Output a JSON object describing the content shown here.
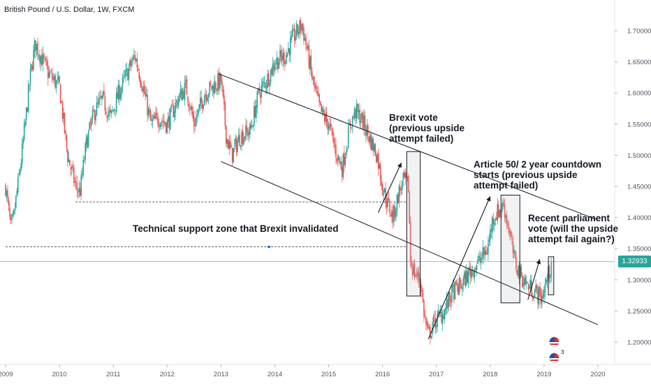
{
  "header": {
    "title": "British Pound / U.S. Dollar, 1W, FXCM"
  },
  "colors": {
    "up": "#26a69a",
    "down": "#ef5350",
    "accent": "#26a69a",
    "trend": "#131722",
    "support": "#5d606b",
    "box_fill": "#b2b5be"
  },
  "price_tag": {
    "value": "1.32933"
  },
  "events": {
    "count_label": "3",
    "icon": "us-flag-economic-event-icon"
  },
  "chart_data": {
    "type": "candlestick",
    "timeframe": "1W",
    "symbol": "British Pound / U.S. Dollar",
    "source": "FXCM",
    "x_ticks": [
      "2009",
      "2010",
      "2011",
      "2012",
      "2013",
      "2014",
      "2015",
      "2016",
      "2017",
      "2018",
      "2019",
      "2020"
    ],
    "y_ticks": [
      "1.20000",
      "1.25000",
      "1.30000",
      "1.35000",
      "1.40000",
      "1.45000",
      "1.50000",
      "1.55000",
      "1.60000",
      "1.65000",
      "1.70000"
    ],
    "ylim": [
      1.16,
      1.74
    ],
    "xlim": [
      2009.0,
      2020.3
    ],
    "last_price": 1.32933,
    "close_path": [
      [
        2009.0,
        1.45
      ],
      [
        2009.1,
        1.38
      ],
      [
        2009.15,
        1.4
      ],
      [
        2009.3,
        1.5
      ],
      [
        2009.45,
        1.62
      ],
      [
        2009.55,
        1.68
      ],
      [
        2009.65,
        1.66
      ],
      [
        2009.8,
        1.63
      ],
      [
        2010.0,
        1.61
      ],
      [
        2010.15,
        1.5
      ],
      [
        2010.3,
        1.45
      ],
      [
        2010.38,
        1.44
      ],
      [
        2010.5,
        1.52
      ],
      [
        2010.65,
        1.57
      ],
      [
        2010.8,
        1.59
      ],
      [
        2010.95,
        1.56
      ],
      [
        2011.1,
        1.6
      ],
      [
        2011.3,
        1.64
      ],
      [
        2011.4,
        1.66
      ],
      [
        2011.55,
        1.61
      ],
      [
        2011.7,
        1.55
      ],
      [
        2011.85,
        1.56
      ],
      [
        2012.0,
        1.55
      ],
      [
        2012.2,
        1.59
      ],
      [
        2012.35,
        1.61
      ],
      [
        2012.5,
        1.55
      ],
      [
        2012.7,
        1.6
      ],
      [
        2012.85,
        1.61
      ],
      [
        2013.0,
        1.62
      ],
      [
        2013.1,
        1.53
      ],
      [
        2013.2,
        1.5
      ],
      [
        2013.35,
        1.53
      ],
      [
        2013.55,
        1.54
      ],
      [
        2013.7,
        1.6
      ],
      [
        2013.85,
        1.62
      ],
      [
        2014.0,
        1.65
      ],
      [
        2014.2,
        1.66
      ],
      [
        2014.35,
        1.69
      ],
      [
        2014.5,
        1.71
      ],
      [
        2014.6,
        1.67
      ],
      [
        2014.7,
        1.62
      ],
      [
        2014.85,
        1.57
      ],
      [
        2015.0,
        1.55
      ],
      [
        2015.15,
        1.5
      ],
      [
        2015.25,
        1.48
      ],
      [
        2015.4,
        1.55
      ],
      [
        2015.5,
        1.57
      ],
      [
        2015.6,
        1.56
      ],
      [
        2015.75,
        1.53
      ],
      [
        2015.9,
        1.5
      ],
      [
        2016.0,
        1.45
      ],
      [
        2016.1,
        1.42
      ],
      [
        2016.2,
        1.4
      ],
      [
        2016.3,
        1.44
      ],
      [
        2016.4,
        1.46
      ],
      [
        2016.48,
        1.45
      ],
      [
        2016.52,
        1.33
      ],
      [
        2016.6,
        1.31
      ],
      [
        2016.7,
        1.3
      ],
      [
        2016.78,
        1.24
      ],
      [
        2016.85,
        1.21
      ],
      [
        2016.95,
        1.23
      ],
      [
        2017.05,
        1.24
      ],
      [
        2017.15,
        1.25
      ],
      [
        2017.3,
        1.28
      ],
      [
        2017.45,
        1.29
      ],
      [
        2017.6,
        1.31
      ],
      [
        2017.7,
        1.32
      ],
      [
        2017.8,
        1.33
      ],
      [
        2017.95,
        1.35
      ],
      [
        2018.05,
        1.4
      ],
      [
        2018.15,
        1.41
      ],
      [
        2018.25,
        1.42
      ],
      [
        2018.35,
        1.38
      ],
      [
        2018.45,
        1.33
      ],
      [
        2018.55,
        1.31
      ],
      [
        2018.7,
        1.29
      ],
      [
        2018.85,
        1.28
      ],
      [
        2018.95,
        1.27
      ],
      [
        2019.05,
        1.3
      ],
      [
        2019.15,
        1.32933
      ]
    ],
    "trend_lines": [
      {
        "name": "channel-upper",
        "from": [
          2012.95,
          1.631
        ],
        "to": [
          2020.0,
          1.396
        ]
      },
      {
        "name": "channel-lower",
        "from": [
          2013.0,
          1.49
        ],
        "to": [
          2020.0,
          1.228
        ]
      }
    ],
    "support_lines": [
      {
        "name": "support-upper",
        "from": [
          2010.3,
          1.425
        ],
        "to": [
          2016.45,
          1.425
        ]
      },
      {
        "name": "support-lower",
        "from": [
          2009.0,
          1.353
        ],
        "to": [
          2016.45,
          1.353
        ]
      }
    ],
    "boxes": [
      {
        "name": "brexit-box",
        "x0": 2016.45,
        "x1": 2016.7,
        "y0": 1.274,
        "y1": 1.506
      },
      {
        "name": "article50-box",
        "x0": 2018.2,
        "x1": 2018.55,
        "y0": 1.263,
        "y1": 1.436
      },
      {
        "name": "recent-box",
        "x0": 2019.08,
        "x1": 2019.18,
        "y0": 1.276,
        "y1": 1.337
      }
    ],
    "arrows": [
      {
        "name": "arrow-brexit",
        "from": [
          2015.92,
          1.408
        ],
        "to": [
          2016.35,
          1.488
        ]
      },
      {
        "name": "arrow-article50",
        "from": [
          2016.85,
          1.205
        ],
        "to": [
          2018.0,
          1.434
        ]
      },
      {
        "name": "arrow-recent",
        "from": [
          2018.7,
          1.268
        ],
        "to": [
          2018.92,
          1.333
        ]
      }
    ],
    "annotations": [
      {
        "key": "brexit",
        "text": "Brexit vote\n(previous upside\nattempt failed)"
      },
      {
        "key": "article50",
        "text": "Article 50/ 2 year countdown\nstarts (previous upside\nattempt failed)"
      },
      {
        "key": "parliament",
        "text": "Recent parliament\nvote (will the upside\nattempt fail again?)"
      },
      {
        "key": "support",
        "text": "Technical support zone that Brexit invalidated"
      }
    ]
  }
}
